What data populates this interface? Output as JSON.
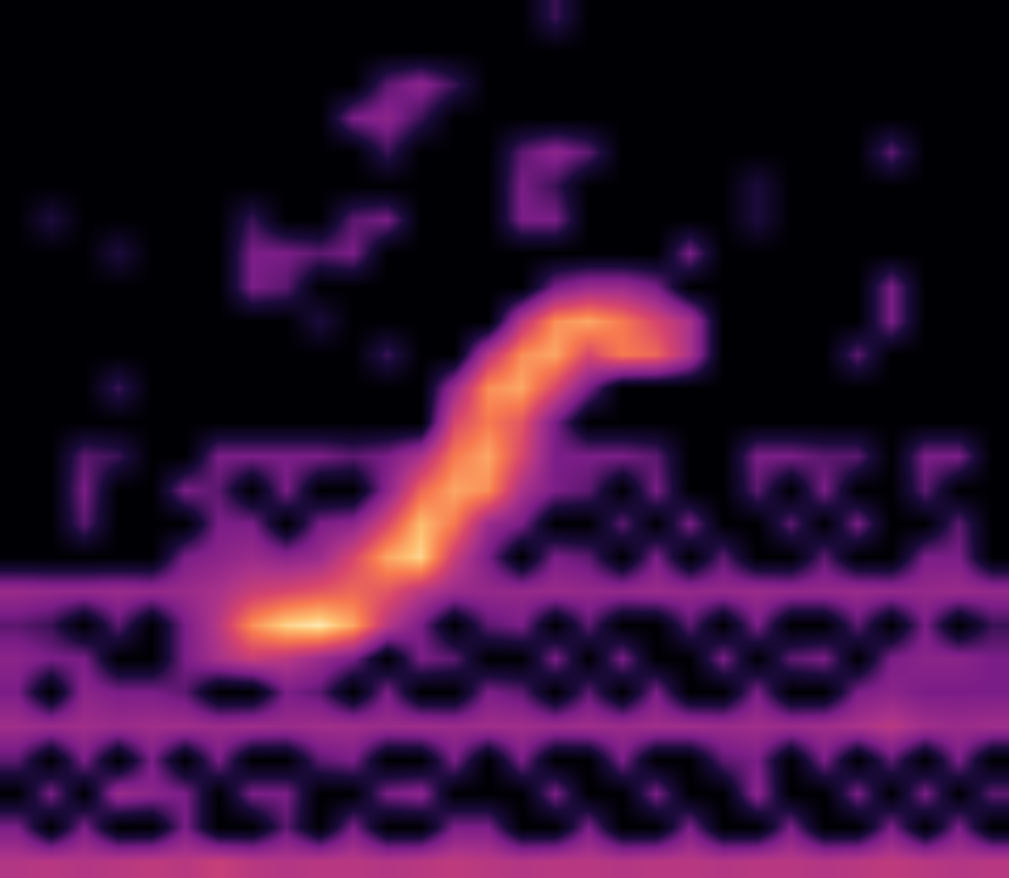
{
  "chart_data": {
    "type": "heatmap",
    "tick_labels": false,
    "z": [
      [
        0,
        0,
        0,
        0,
        0,
        0,
        0,
        0,
        0,
        0,
        0,
        0,
        0,
        0,
        0,
        0,
        0.2,
        0,
        0,
        0,
        0,
        0,
        0,
        0,
        0,
        0,
        0,
        0,
        0,
        0
      ],
      [
        0,
        0,
        0,
        0,
        0,
        0,
        0,
        0,
        0,
        0,
        0,
        0,
        0,
        0,
        0,
        0,
        0,
        0,
        0,
        0,
        0,
        0,
        0,
        0,
        0,
        0,
        0,
        0,
        0,
        0
      ],
      [
        0,
        0,
        0,
        0,
        0,
        0,
        0,
        0,
        0,
        0,
        0,
        0.25,
        0.35,
        0.2,
        0,
        0,
        0,
        0,
        0,
        0,
        0,
        0,
        0,
        0,
        0,
        0,
        0,
        0,
        0,
        0
      ],
      [
        0,
        0,
        0,
        0,
        0,
        0,
        0,
        0,
        0,
        0,
        0.3,
        0.35,
        0.2,
        0,
        0,
        0,
        0,
        0,
        0,
        0,
        0,
        0,
        0,
        0,
        0,
        0,
        0,
        0,
        0,
        0
      ],
      [
        0,
        0,
        0,
        0,
        0,
        0,
        0,
        0,
        0,
        0,
        0,
        0.2,
        0,
        0,
        0,
        0.25,
        0.35,
        0.25,
        0,
        0,
        0,
        0,
        0,
        0,
        0,
        0,
        0.25,
        0,
        0,
        0
      ],
      [
        0,
        0,
        0,
        0,
        0,
        0,
        0,
        0,
        0,
        0,
        0,
        0,
        0,
        0,
        0,
        0.3,
        0.2,
        0,
        0,
        0,
        0,
        0,
        0.15,
        0,
        0,
        0,
        0,
        0,
        0,
        0
      ],
      [
        0,
        0.15,
        0,
        0,
        0,
        0,
        0,
        0.2,
        0,
        0,
        0.25,
        0.3,
        0,
        0,
        0,
        0.3,
        0.3,
        0,
        0,
        0,
        0,
        0,
        0.15,
        0,
        0,
        0,
        0,
        0,
        0,
        0
      ],
      [
        0,
        0,
        0,
        0.15,
        0,
        0,
        0,
        0.3,
        0.3,
        0.25,
        0.3,
        0,
        0,
        0,
        0,
        0,
        0,
        0,
        0,
        0,
        0.3,
        0,
        0,
        0,
        0,
        0,
        0,
        0,
        0,
        0
      ],
      [
        0,
        0,
        0,
        0,
        0,
        0,
        0,
        0.3,
        0.25,
        0,
        0,
        0,
        0,
        0,
        0,
        0,
        0.3,
        0.4,
        0.4,
        0.3,
        0,
        0,
        0,
        0,
        0,
        0,
        0.3,
        0,
        0,
        0
      ],
      [
        0,
        0,
        0,
        0,
        0,
        0,
        0,
        0,
        0,
        0.15,
        0,
        0,
        0,
        0,
        0,
        0.5,
        0.8,
        0.85,
        0.75,
        0.6,
        0.45,
        0,
        0,
        0,
        0,
        0,
        0.3,
        0,
        0,
        0
      ],
      [
        0,
        0,
        0,
        0,
        0,
        0,
        0,
        0,
        0,
        0,
        0,
        0.2,
        0,
        0,
        0.5,
        0.8,
        0.85,
        0.6,
        0.75,
        0.7,
        0.45,
        0,
        0,
        0,
        0,
        0.25,
        0,
        0,
        0,
        0
      ],
      [
        0,
        0,
        0,
        0.2,
        0,
        0,
        0,
        0,
        0,
        0,
        0,
        0,
        0,
        0.4,
        0.8,
        0.85,
        0.6,
        0.3,
        0,
        0,
        0,
        0,
        0,
        0,
        0,
        0,
        0,
        0,
        0,
        0
      ],
      [
        0,
        0,
        0,
        0,
        0,
        0,
        0,
        0,
        0,
        0,
        0,
        0,
        0,
        0.6,
        0.75,
        0.65,
        0.3,
        0,
        0,
        0,
        0,
        0,
        0,
        0,
        0,
        0,
        0,
        0,
        0,
        0
      ],
      [
        0,
        0,
        0.25,
        0.2,
        0,
        0,
        0.3,
        0.3,
        0.3,
        0.3,
        0.25,
        0.3,
        0.45,
        0.75,
        0.85,
        0.6,
        0.3,
        0.3,
        0.3,
        0.25,
        0,
        0,
        0.3,
        0.3,
        0.25,
        0.25,
        0,
        0.3,
        0.3,
        0
      ],
      [
        0,
        0,
        0.3,
        0,
        0,
        0.3,
        0.25,
        0,
        0.3,
        0,
        0,
        0.35,
        0.7,
        0.85,
        0.8,
        0.45,
        0.3,
        0.25,
        0,
        0.3,
        0,
        0,
        0.25,
        0,
        0.3,
        0,
        0,
        0.25,
        0,
        0
      ],
      [
        0,
        0,
        0.25,
        0,
        0,
        0,
        0.3,
        0.3,
        0,
        0.3,
        0.35,
        0.6,
        0.9,
        0.75,
        0.4,
        0.3,
        0,
        0,
        0.25,
        0,
        0.3,
        0,
        0,
        0.25,
        0,
        0.3,
        0,
        0,
        0.25,
        0
      ],
      [
        0,
        0,
        0,
        0,
        0,
        0.3,
        0.35,
        0.4,
        0.35,
        0.4,
        0.6,
        0.85,
        0.95,
        0.55,
        0.3,
        0,
        0.3,
        0.25,
        0,
        0.3,
        0,
        0.25,
        0,
        0,
        0.25,
        0,
        0,
        0.3,
        0.3,
        0
      ],
      [
        0.4,
        0.38,
        0.38,
        0.4,
        0.38,
        0.4,
        0.45,
        0.55,
        0.6,
        0.65,
        0.7,
        0.65,
        0.5,
        0.4,
        0.38,
        0.38,
        0.4,
        0.38,
        0.38,
        0.4,
        0.38,
        0.38,
        0.4,
        0.38,
        0.38,
        0.4,
        0.38,
        0.38,
        0.4,
        0.38
      ],
      [
        0.25,
        0.2,
        0,
        0.25,
        0,
        0.3,
        0.5,
        0.8,
        0.95,
        1,
        0.85,
        0.5,
        0.3,
        0,
        0.25,
        0.3,
        0,
        0.25,
        0,
        0,
        0.25,
        0,
        0.3,
        0,
        0,
        0.25,
        0,
        0.3,
        0,
        0.2
      ],
      [
        0.35,
        0.3,
        0.3,
        0,
        0,
        0.3,
        0.45,
        0.55,
        0.5,
        0.4,
        0.3,
        0,
        0.3,
        0.25,
        0,
        0,
        0.3,
        0,
        0.3,
        0,
        0,
        0.3,
        0,
        0.25,
        0.3,
        0,
        0.3,
        0.35,
        0.35,
        0.3
      ],
      [
        0.3,
        0,
        0.35,
        0.3,
        0.3,
        0.25,
        0,
        0,
        0.3,
        0.25,
        0,
        0.3,
        0,
        0,
        0.3,
        0.25,
        0,
        0.25,
        0,
        0.3,
        0,
        0,
        0.3,
        0,
        0,
        0.3,
        0.35,
        0.3,
        0.3,
        0.3
      ],
      [
        0.42,
        0.4,
        0.42,
        0.4,
        0.42,
        0.42,
        0.4,
        0.42,
        0.4,
        0.42,
        0.42,
        0.4,
        0.42,
        0.4,
        0.42,
        0.42,
        0.4,
        0.42,
        0.4,
        0.42,
        0.42,
        0.4,
        0.42,
        0.4,
        0.42,
        0.45,
        0.5,
        0.42,
        0.4,
        0.42
      ],
      [
        0.25,
        0,
        0.3,
        0,
        0.3,
        0,
        0.3,
        0,
        0,
        0.25,
        0.3,
        0,
        0,
        0.3,
        0,
        0.3,
        0,
        0,
        0.3,
        0,
        0,
        0.25,
        0.3,
        0,
        0.3,
        0,
        0.25,
        0,
        0.3,
        0
      ],
      [
        0,
        0.3,
        0,
        0.4,
        0.35,
        0.3,
        0,
        0.3,
        0.3,
        0,
        0,
        0.3,
        0.35,
        0,
        0,
        0,
        0.3,
        0,
        0,
        0.3,
        0,
        0,
        0.35,
        0,
        0,
        0.3,
        0,
        0.3,
        0,
        0.25
      ],
      [
        0.3,
        0,
        0.3,
        0,
        0,
        0.3,
        0,
        0,
        0.25,
        0,
        0.3,
        0,
        0,
        0.3,
        0.3,
        0,
        0,
        0.3,
        0,
        0,
        0.3,
        0,
        0,
        0.3,
        0,
        0,
        0.3,
        0,
        0.3,
        0
      ],
      [
        0.48,
        0.5,
        0.48,
        0.5,
        0.52,
        0.5,
        0.55,
        0.5,
        0.48,
        0.5,
        0.5,
        0.48,
        0.5,
        0.52,
        0.5,
        0.48,
        0.5,
        0.5,
        0.48,
        0.5,
        0.5,
        0.48,
        0.5,
        0.5,
        0.48,
        0.5,
        0.52,
        0.5,
        0.48,
        0.5
      ]
    ]
  }
}
